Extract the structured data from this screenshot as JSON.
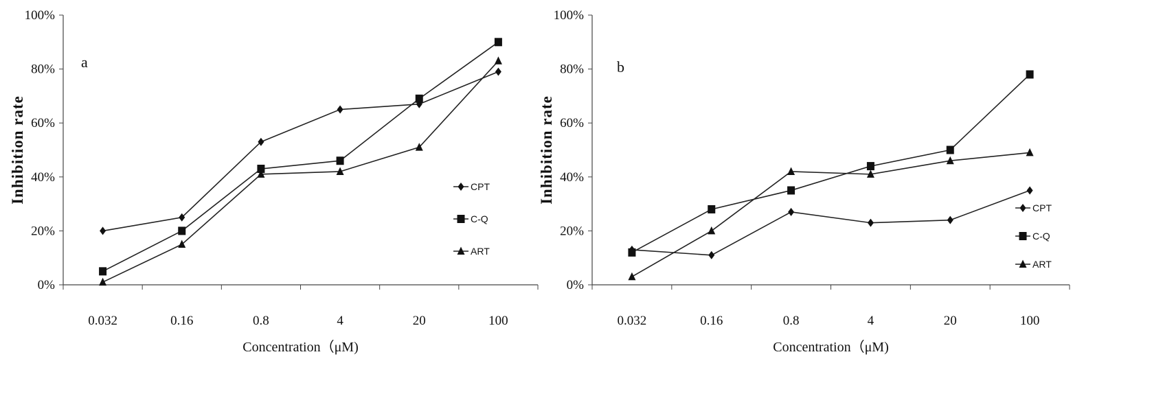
{
  "chart_data": [
    {
      "type": "line",
      "panel_label": "a",
      "categories": [
        "0.032",
        "0.16",
        "0.8",
        "4",
        "20",
        "100"
      ],
      "xlabel": "Concentration（μM)",
      "ylabel": "Inhibition rate",
      "ylim": [
        0,
        100
      ],
      "yticks": [
        "0%",
        "20%",
        "40%",
        "60%",
        "80%",
        "100%"
      ],
      "grid": false,
      "legend_position": "right",
      "series": [
        {
          "name": "CPT",
          "marker": "diamond",
          "values": [
            20,
            25,
            53,
            65,
            67,
            79
          ]
        },
        {
          "name": "C-Q",
          "marker": "square",
          "values": [
            5,
            20,
            43,
            46,
            69,
            90
          ]
        },
        {
          "name": "ART",
          "marker": "triangle",
          "values": [
            1,
            15,
            41,
            42,
            51,
            83
          ]
        }
      ]
    },
    {
      "type": "line",
      "panel_label": "b",
      "categories": [
        "0.032",
        "0.16",
        "0.8",
        "4",
        "20",
        "100"
      ],
      "xlabel": "Concentration（μM)",
      "ylabel": "Inhibition rate",
      "ylim": [
        0,
        100
      ],
      "yticks": [
        "0%",
        "20%",
        "40%",
        "60%",
        "80%",
        "100%"
      ],
      "grid": false,
      "legend_position": "right",
      "series": [
        {
          "name": "CPT",
          "marker": "diamond",
          "values": [
            13,
            11,
            27,
            23,
            24,
            35
          ]
        },
        {
          "name": "C-Q",
          "marker": "square",
          "values": [
            12,
            28,
            35,
            44,
            50,
            78
          ]
        },
        {
          "name": "ART",
          "marker": "triangle",
          "values": [
            3,
            20,
            42,
            41,
            46,
            49
          ]
        }
      ]
    }
  ]
}
